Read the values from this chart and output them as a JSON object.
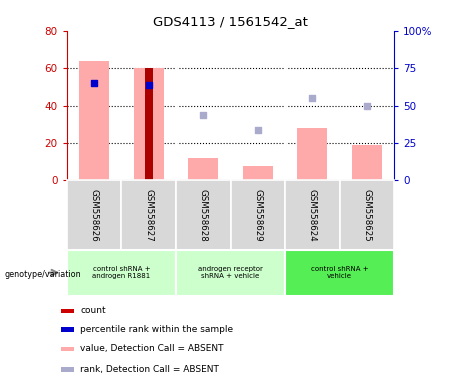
{
  "title": "GDS4113 / 1561542_at",
  "samples": [
    "GSM558626",
    "GSM558627",
    "GSM558628",
    "GSM558629",
    "GSM558624",
    "GSM558625"
  ],
  "group_colors": [
    "#ccffcc",
    "#ccffcc",
    "#55ee55"
  ],
  "group_ranges": [
    [
      0,
      1
    ],
    [
      2,
      3
    ],
    [
      4,
      5
    ]
  ],
  "group_labels": [
    "control shRNA +\nandrogen R1881",
    "androgen receptor\nshRNA + vehicle",
    "control shRNA +\nvehicle"
  ],
  "bar_pink_values": [
    64,
    60,
    12,
    8,
    28,
    19
  ],
  "bar_red_values": [
    0,
    60,
    0,
    0,
    0,
    0
  ],
  "blue_scatter_values": [
    52,
    51,
    null,
    null,
    null,
    null
  ],
  "light_blue_scatter_values": [
    null,
    null,
    35,
    27,
    44,
    40
  ],
  "ylim_left": [
    0,
    80
  ],
  "ylim_right": [
    0,
    100
  ],
  "yticks_left": [
    0,
    20,
    40,
    60,
    80
  ],
  "yticks_right": [
    0,
    25,
    50,
    75,
    100
  ],
  "yticklabels_right": [
    "0",
    "25",
    "50",
    "75",
    "100%"
  ],
  "left_axis_color": "#cc0000",
  "right_axis_color": "#0000cc",
  "legend_items": [
    {
      "color": "#cc0000",
      "label": "count"
    },
    {
      "color": "#0000cc",
      "label": "percentile rank within the sample"
    },
    {
      "color": "#ffaaaa",
      "label": "value, Detection Call = ABSENT"
    },
    {
      "color": "#aaaacc",
      "label": "rank, Detection Call = ABSENT"
    }
  ]
}
